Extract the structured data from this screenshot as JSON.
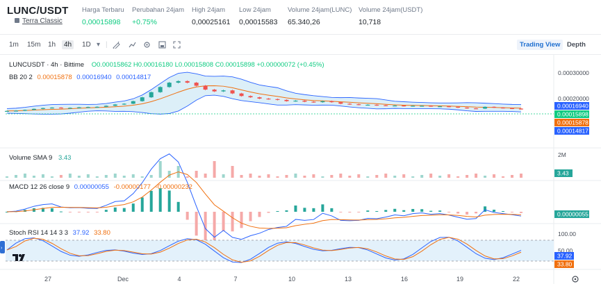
{
  "header": {
    "pair": "LUNC/USDT",
    "sub_link": "Terra Classic",
    "stats": [
      {
        "label": "Harga Terbaru",
        "value": "0,00015898",
        "tone": "green"
      },
      {
        "label": "Perubahan 24jam",
        "value": "+0.75%",
        "tone": "green"
      },
      {
        "label": "High 24jam",
        "value": "0,00025161",
        "tone": "normal"
      },
      {
        "label": "Low 24jam",
        "value": "0,00015583",
        "tone": "normal"
      },
      {
        "label": "Volume 24jam(LUNC)",
        "value": "65.340,26",
        "tone": "normal"
      },
      {
        "label": "Volume 24jam(USDT)",
        "value": "10,718",
        "tone": "normal"
      }
    ]
  },
  "toolbar": {
    "timeframes": [
      "1m",
      "15m",
      "1h",
      "4h",
      "1D"
    ],
    "active_timeframe": "4h",
    "views": [
      "Trading View",
      "Depth"
    ],
    "active_view": "Trading View"
  },
  "main_legend": {
    "symbol": "LUNCUSDT · 4h · Bittime",
    "ohlc": "O0.00015862 H0.00016180 L0.00015808 C0.00015898 +0.00000072 (+0.45%)",
    "bb_label": "BB 20 2",
    "bb_basis": "0.00015878",
    "bb_upper": "0.00016940",
    "bb_lower": "0.00014817"
  },
  "price_axis": {
    "ticks": [
      "0.00030000",
      "0.00020000"
    ],
    "tags": [
      {
        "value": "0.00016940",
        "color": "#2962ff"
      },
      {
        "value": "0.00015898",
        "color": "#0ecb81"
      },
      {
        "value": "0.00015878",
        "color": "#f0700f"
      },
      {
        "value": "0.00014817",
        "color": "#2962ff"
      }
    ]
  },
  "volume_panel": {
    "label": "Volume SMA 9",
    "value": "3.43",
    "axis_tick": "2M",
    "tag": "3.43"
  },
  "macd_panel": {
    "label": "MACD 12 26 close 9",
    "macd": "0.00000055",
    "signal": "-0.00000177",
    "hist": "-0.00000232",
    "tag": "0.00000055"
  },
  "stoch_panel": {
    "label": "Stoch RSI 14 14 3 3",
    "k": "37.92",
    "d": "33.80",
    "axis_ticks": [
      "100.00",
      "50.00"
    ],
    "tag_k": "37.92",
    "tag_d": "33.80"
  },
  "time_axis": [
    "27",
    "Dec",
    "4",
    "7",
    "10",
    "13",
    "16",
    "19",
    "22"
  ],
  "colors": {
    "up": "#26a69a",
    "down": "#ef5350",
    "basis": "#f0700f",
    "band": "#2962ff",
    "accent": "#1f6fd0"
  },
  "chart_data": {
    "type": "candlestick",
    "price_series_close": [
      0.000152,
      0.000153,
      0.000156,
      0.00016,
      0.000163,
      0.000165,
      0.000163,
      0.000164,
      0.000166,
      0.000167,
      0.000168,
      0.000172,
      0.000177,
      0.00018,
      0.00019,
      0.000205,
      0.000225,
      0.000245,
      0.000262,
      0.000268,
      0.000262,
      0.00025,
      0.000235,
      0.000228,
      0.000232,
      0.00022,
      0.00021,
      0.000205,
      0.0002,
      0.000198,
      0.000195,
      0.00019,
      0.000192,
      0.000188,
      0.000186,
      0.00019,
      0.000186,
      0.00018,
      0.000178,
      0.000176,
      0.000176,
      0.000174,
      0.000173,
      0.000173,
      0.000171,
      0.000172,
      0.000172,
      0.00017,
      0.00017,
      0.000168,
      0.000165,
      0.000162,
      0.000161,
      0.000168,
      0.000165,
      0.000163,
      0.000161,
      0.000159
    ]
  }
}
